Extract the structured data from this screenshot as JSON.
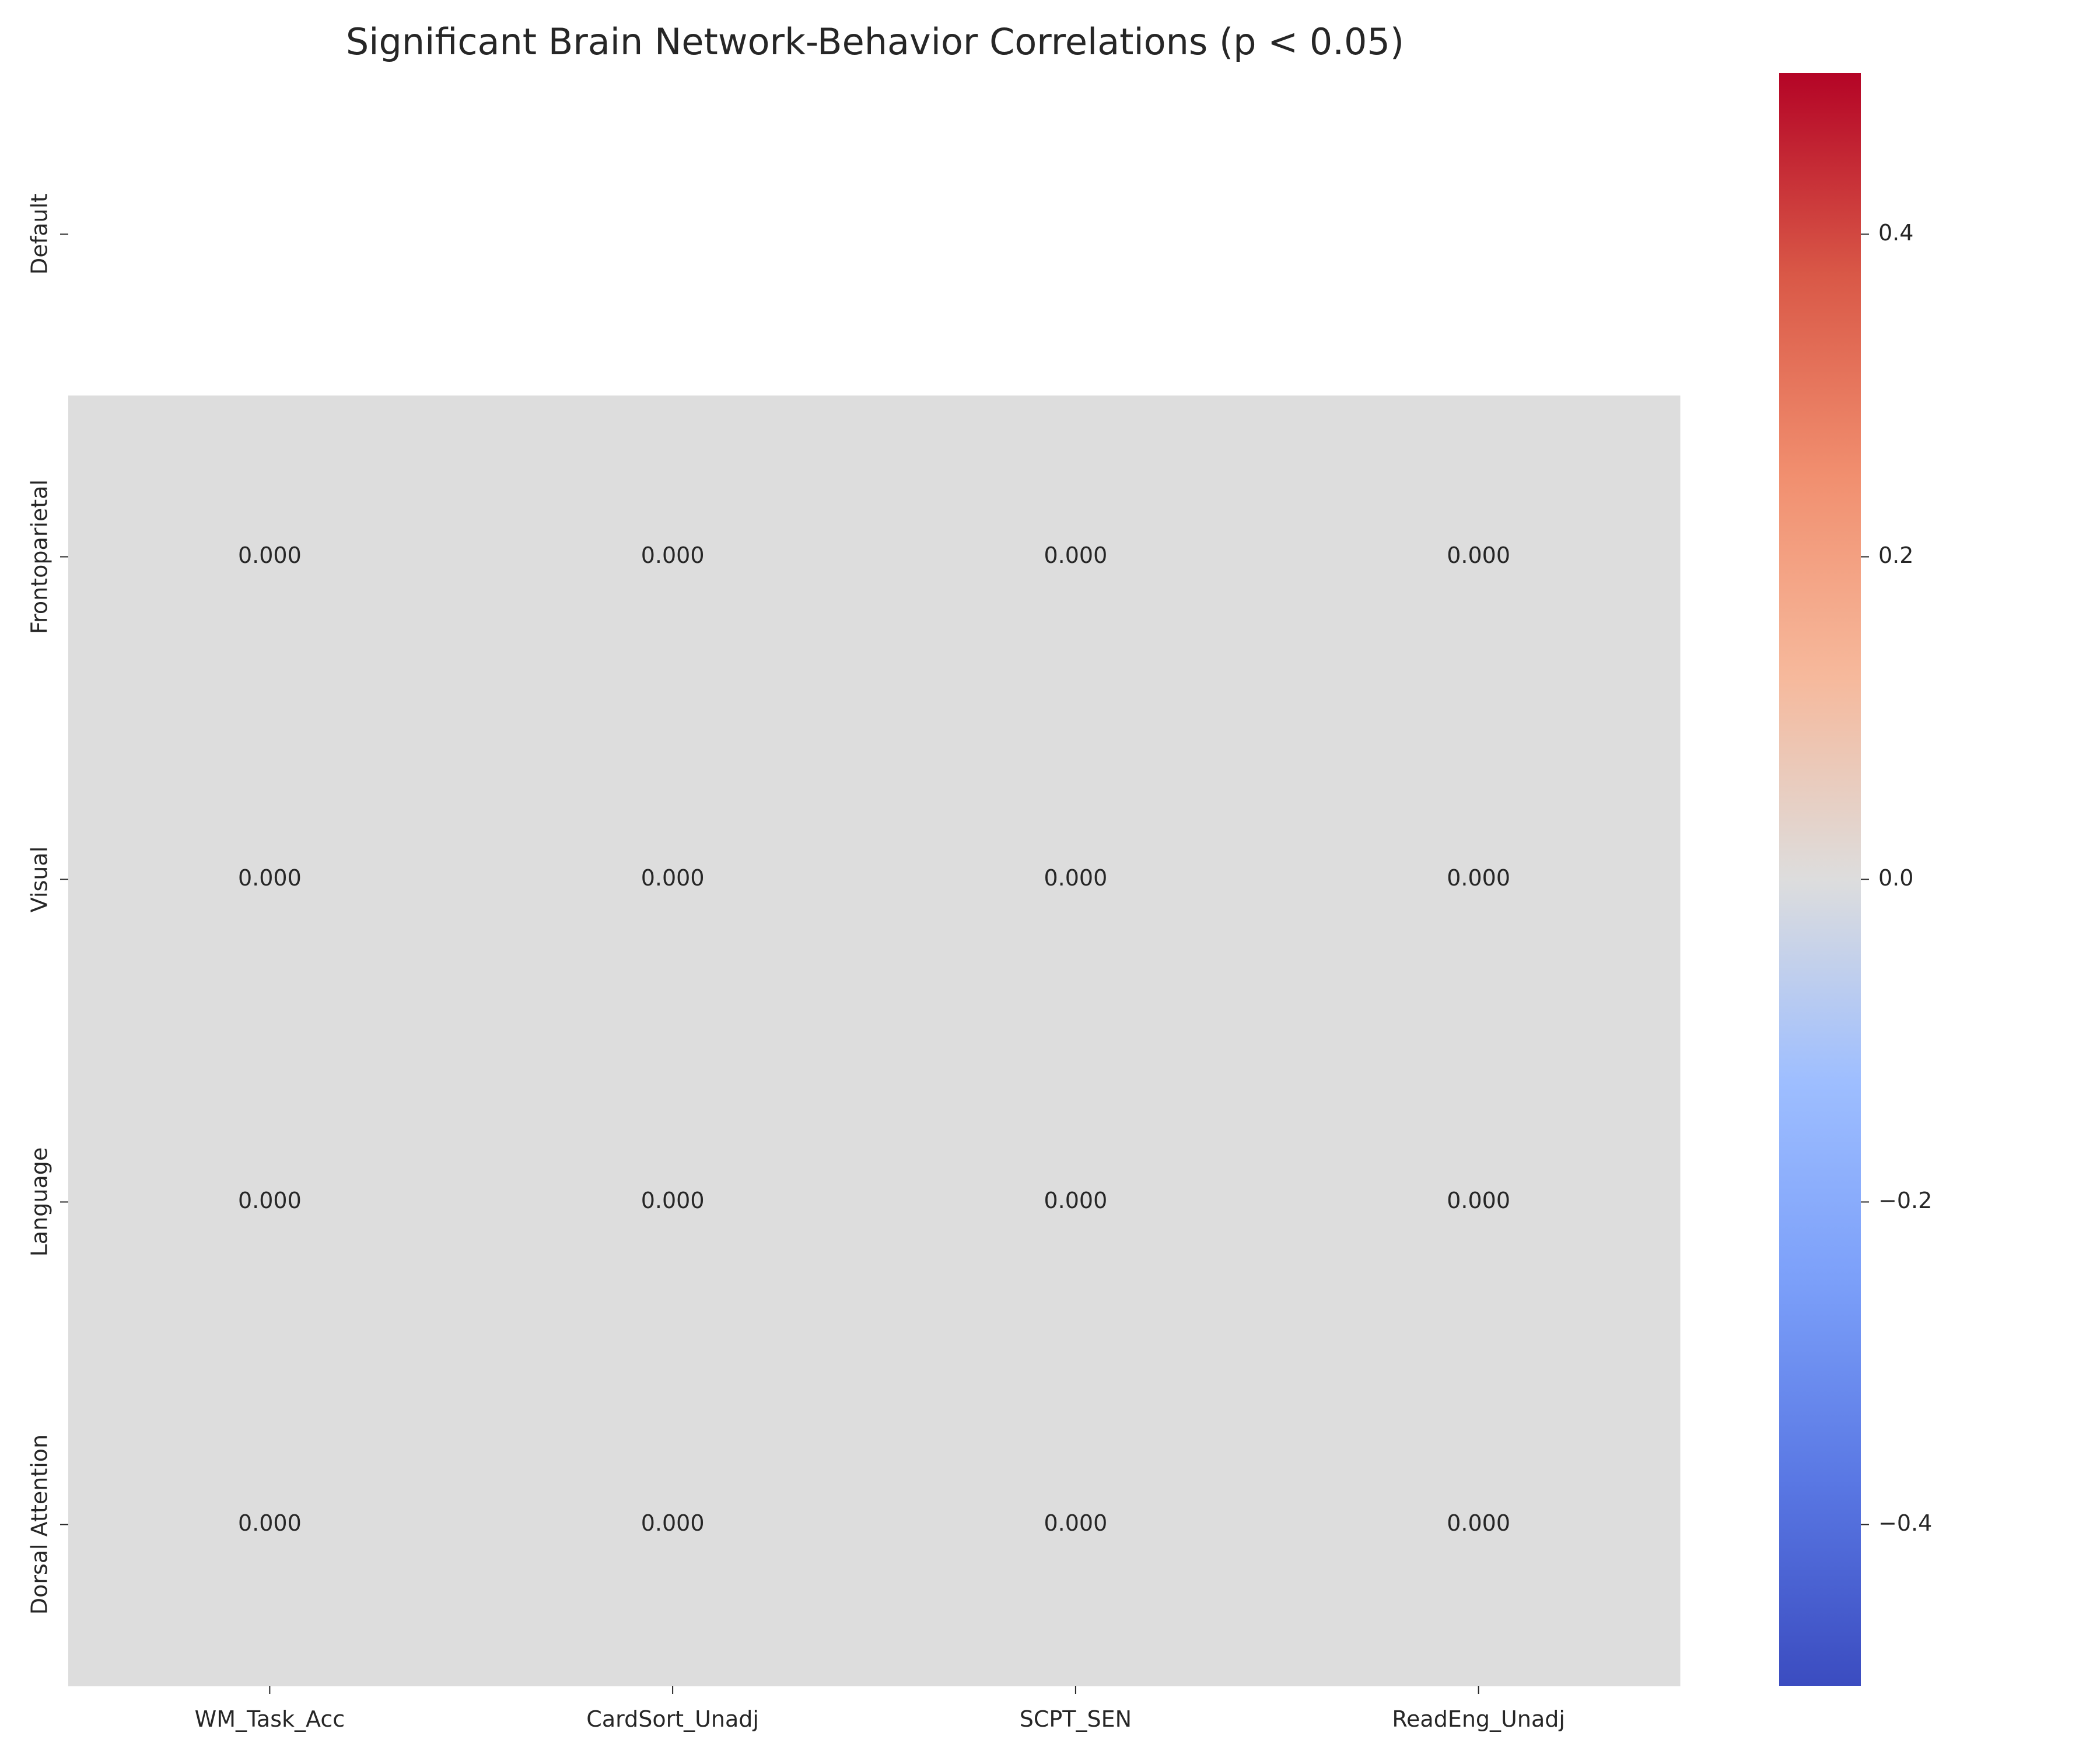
{
  "chart_data": {
    "type": "heatmap",
    "title": "Significant Brain Network-Behavior Correlations (p < 0.05)",
    "xlabel": "",
    "ylabel": "",
    "columns": [
      "WM_Task_Acc",
      "CardSort_Unadj",
      "SCPT_SEN",
      "ReadEng_Unadj"
    ],
    "rows": [
      "Default",
      "Frontoparietal",
      "Visual",
      "Language",
      "Dorsal Attention"
    ],
    "values": [
      [
        null,
        null,
        null,
        null
      ],
      [
        0.0,
        0.0,
        0.0,
        0.0
      ],
      [
        0.0,
        0.0,
        0.0,
        0.0
      ],
      [
        0.0,
        0.0,
        0.0,
        0.0
      ],
      [
        0.0,
        0.0,
        0.0,
        0.0
      ]
    ],
    "cell_labels": [
      [
        null,
        null,
        null,
        null
      ],
      [
        "0.000",
        "0.000",
        "0.000",
        "0.000"
      ],
      [
        "0.000",
        "0.000",
        "0.000",
        "0.000"
      ],
      [
        "0.000",
        "0.000",
        "0.000",
        "0.000"
      ],
      [
        "0.000",
        "0.000",
        "0.000",
        "0.000"
      ]
    ],
    "colorbar": {
      "colormap": "coolwarm",
      "range": [
        -0.5,
        0.5
      ],
      "ticks": [
        0.4,
        0.2,
        0.0,
        -0.2,
        -0.4
      ],
      "tick_labels": [
        "0.4",
        "0.2",
        "0.0",
        "−0.2",
        "−0.4"
      ]
    },
    "grid": false
  }
}
